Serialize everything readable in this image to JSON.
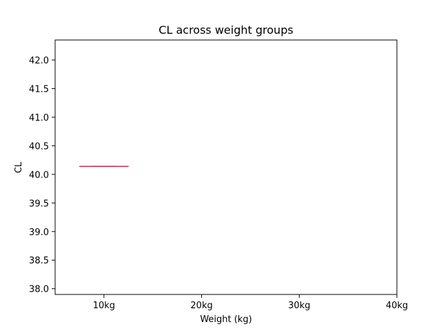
{
  "chart_data": {
    "type": "box",
    "title": "CL across weight groups",
    "xlabel": "Weight (kg)",
    "ylabel": "CL",
    "categories": [
      "10kg",
      "20kg",
      "30kg",
      "40kg"
    ],
    "ylim": [
      37.9,
      42.35
    ],
    "yticks": [
      38.0,
      38.5,
      39.0,
      39.5,
      40.0,
      40.5,
      41.0,
      41.5,
      42.0
    ],
    "ytick_labels": [
      "38.0",
      "38.5",
      "39.0",
      "39.5",
      "40.0",
      "40.5",
      "41.0",
      "41.5",
      "42.0"
    ],
    "boxes": [
      {
        "category": "10kg",
        "min": 40.14,
        "q1": 40.14,
        "median": 40.14,
        "q3": 40.14,
        "max": 40.14
      }
    ],
    "grid": false,
    "colors": {
      "median": "#dc143c",
      "box": "#4c4c4c",
      "whisker": "#4c4c4c"
    }
  }
}
